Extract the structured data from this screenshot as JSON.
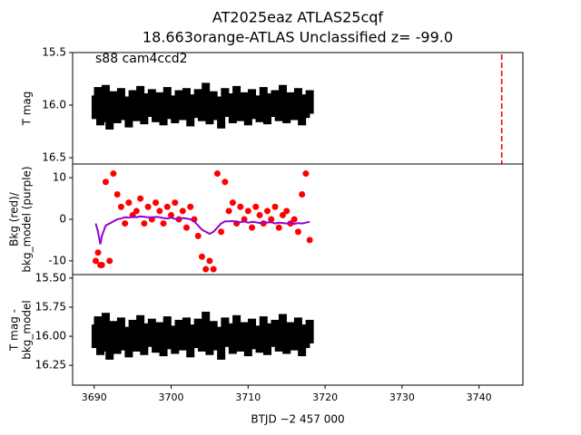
{
  "title": [
    "AT2025eaz  ATLAS25cqf",
    "18.663orange-ATLAS Unclassified z= -99.0"
  ],
  "xlabel": "BTJD −2 457 000",
  "chart_data": [
    {
      "type": "scatter",
      "ylabel": [
        "T mag"
      ],
      "annotation": "s88 cam4ccd2",
      "y_inverted": true,
      "xlim": [
        3687.2,
        3745.7
      ],
      "ylim": [
        16.56,
        15.5
      ],
      "yticks": [
        15.5,
        {
          "value": 16,
          "label": "16.0"
        },
        16.5
      ],
      "vline": {
        "x": 3742.95,
        "color": "#ff0000",
        "style": "dashed"
      },
      "x": [
        3690.2,
        3690.5,
        3690.8,
        3691,
        3691.5,
        3692,
        3692.5,
        3693,
        3693.5,
        3694,
        3694.5,
        3695,
        3695.5,
        3696,
        3696.5,
        3697,
        3697.5,
        3698,
        3698.5,
        3699,
        3699.5,
        3700,
        3700.5,
        3701,
        3701.5,
        3702,
        3702.5,
        3703,
        3703.5,
        3704,
        3704.5,
        3705,
        3705.5,
        3706,
        3706.5,
        3707,
        3707.5,
        3708,
        3708.5,
        3709,
        3709.5,
        3710,
        3710.5,
        3711,
        3711.5,
        3712,
        3712.5,
        3713,
        3713.5,
        3714,
        3714.5,
        3715,
        3715.5,
        3716,
        3716.5,
        3717,
        3717.5,
        3718
      ],
      "series": [
        {
          "color": "#000000",
          "marker": "errorbar",
          "values": [
            16.02,
            15.94,
            16.08,
            16.05,
            15.92,
            16.12,
            15.98,
            16.06,
            15.95,
            16.03,
            16.1,
            15.97,
            16.04,
            15.93,
            16.07,
            16.0,
            15.96,
            16.05,
            15.99,
            16.08,
            15.94,
            16.02,
            16.06,
            15.97,
            16.03,
            15.95,
            16.09,
            16.01,
            15.96,
            16.04,
            15.9,
            16.07,
            15.98,
            16.03,
            16.11,
            15.95,
            16.0,
            16.06,
            15.93,
            16.04,
            15.99,
            16.08,
            15.96,
            16.02,
            16.05,
            15.94,
            16.07,
            16.0,
            15.97,
            16.04,
            15.92,
            16.06,
            15.99,
            16.03,
            15.95,
            16.08,
            16.01,
            15.97
          ]
        }
      ]
    },
    {
      "type": "scatter",
      "ylabel": [
        "Bkg (red)/",
        "bkg_model (purple)"
      ],
      "y_inverted": false,
      "xlim": [
        3687.2,
        3745.7
      ],
      "ylim": [
        -13.3,
        13.3
      ],
      "yticks": [
        -10,
        0,
        10
      ],
      "x": [
        3690.2,
        3690.5,
        3690.8,
        3691,
        3691.5,
        3692,
        3692.5,
        3693,
        3693.5,
        3694,
        3694.5,
        3695,
        3695.5,
        3696,
        3696.5,
        3697,
        3697.5,
        3698,
        3698.5,
        3699,
        3699.5,
        3700,
        3700.5,
        3701,
        3701.5,
        3702,
        3702.5,
        3703,
        3703.5,
        3704,
        3704.5,
        3705,
        3705.5,
        3706,
        3706.5,
        3707,
        3707.5,
        3708,
        3708.5,
        3709,
        3709.5,
        3710,
        3710.5,
        3711,
        3711.5,
        3712,
        3712.5,
        3713,
        3713.5,
        3714,
        3714.5,
        3715,
        3715.5,
        3716,
        3716.5,
        3717,
        3717.5,
        3718
      ],
      "series": [
        {
          "color": "#ff0000",
          "marker": "dot",
          "values": [
            -10,
            -8,
            -11,
            -11,
            9,
            -10,
            11,
            6,
            3,
            -1,
            4,
            1,
            2,
            5,
            -1,
            3,
            0,
            4,
            2,
            -1,
            3,
            1,
            4,
            0,
            2,
            -2,
            3,
            0,
            -4,
            -9,
            -12,
            -10,
            -12,
            11,
            -3,
            9,
            2,
            4,
            -1,
            3,
            0,
            2,
            -2,
            3,
            1,
            -1,
            2,
            0,
            3,
            -2,
            1,
            2,
            -1,
            0,
            -3,
            6,
            11,
            -5
          ]
        },
        {
          "color": "#9400d3",
          "marker": "line",
          "values": [
            -1,
            -3,
            -6,
            -4,
            -1.5,
            -1,
            -0.5,
            0,
            0.2,
            0.5,
            0.4,
            0.6,
            0.5,
            0.7,
            0.6,
            0.5,
            0.4,
            0.6,
            0.5,
            0.3,
            0.2,
            0.4,
            0.1,
            0,
            0.3,
            0.2,
            0,
            -0.5,
            -1.5,
            -2.5,
            -3,
            -3.5,
            -3,
            -2,
            -1,
            -0.5,
            -0.5,
            -0.4,
            -0.6,
            -0.7,
            -0.5,
            -0.8,
            -0.6,
            -0.7,
            -0.9,
            -0.6,
            -0.8,
            -0.7,
            -1.0,
            -0.8,
            -0.9,
            -1.0,
            -0.8,
            -1.1,
            -0.9,
            -1.0,
            -0.8,
            -0.6
          ]
        }
      ]
    },
    {
      "type": "scatter",
      "ylabel": [
        "T mag -",
        "bkg_model"
      ],
      "y_inverted": true,
      "xlim": [
        3687.2,
        3745.7
      ],
      "ylim": [
        16.42,
        15.47
      ],
      "yticks": [
        {
          "value": 15.5,
          "label": "15.50"
        },
        {
          "value": 15.75,
          "label": "15.75"
        },
        {
          "value": 16,
          "label": "16.00"
        },
        {
          "value": 16.25,
          "label": "16.25"
        }
      ],
      "xticks": [
        3690,
        3700,
        3710,
        3720,
        3730,
        3740
      ],
      "x": [
        3690.2,
        3690.5,
        3690.8,
        3691,
        3691.5,
        3692,
        3692.5,
        3693,
        3693.5,
        3694,
        3694.5,
        3695,
        3695.5,
        3696,
        3696.5,
        3697,
        3697.5,
        3698,
        3698.5,
        3699,
        3699.5,
        3700,
        3700.5,
        3701,
        3701.5,
        3702,
        3702.5,
        3703,
        3703.5,
        3704,
        3704.5,
        3705,
        3705.5,
        3706,
        3706.5,
        3707,
        3707.5,
        3708,
        3708.5,
        3709,
        3709.5,
        3710,
        3710.5,
        3711,
        3711.5,
        3712,
        3712.5,
        3713,
        3713.5,
        3714,
        3714.5,
        3715,
        3715.5,
        3716,
        3716.5,
        3717,
        3717.5,
        3718
      ],
      "series": [
        {
          "color": "#000000",
          "marker": "errorbar",
          "values": [
            16.0,
            15.93,
            16.06,
            16.03,
            15.9,
            16.1,
            15.97,
            16.05,
            15.94,
            16.02,
            16.08,
            15.96,
            16.03,
            15.92,
            16.06,
            15.99,
            15.95,
            16.04,
            15.98,
            16.07,
            15.93,
            16.01,
            16.05,
            15.96,
            16.02,
            15.94,
            16.08,
            16.0,
            15.95,
            16.03,
            15.89,
            16.06,
            15.97,
            16.02,
            16.1,
            15.94,
            15.99,
            16.05,
            15.92,
            16.03,
            15.98,
            16.07,
            15.95,
            16.01,
            16.04,
            15.93,
            16.06,
            15.99,
            15.96,
            16.03,
            15.91,
            16.05,
            15.98,
            16.02,
            15.94,
            16.07,
            16.0,
            15.96
          ]
        }
      ]
    }
  ]
}
